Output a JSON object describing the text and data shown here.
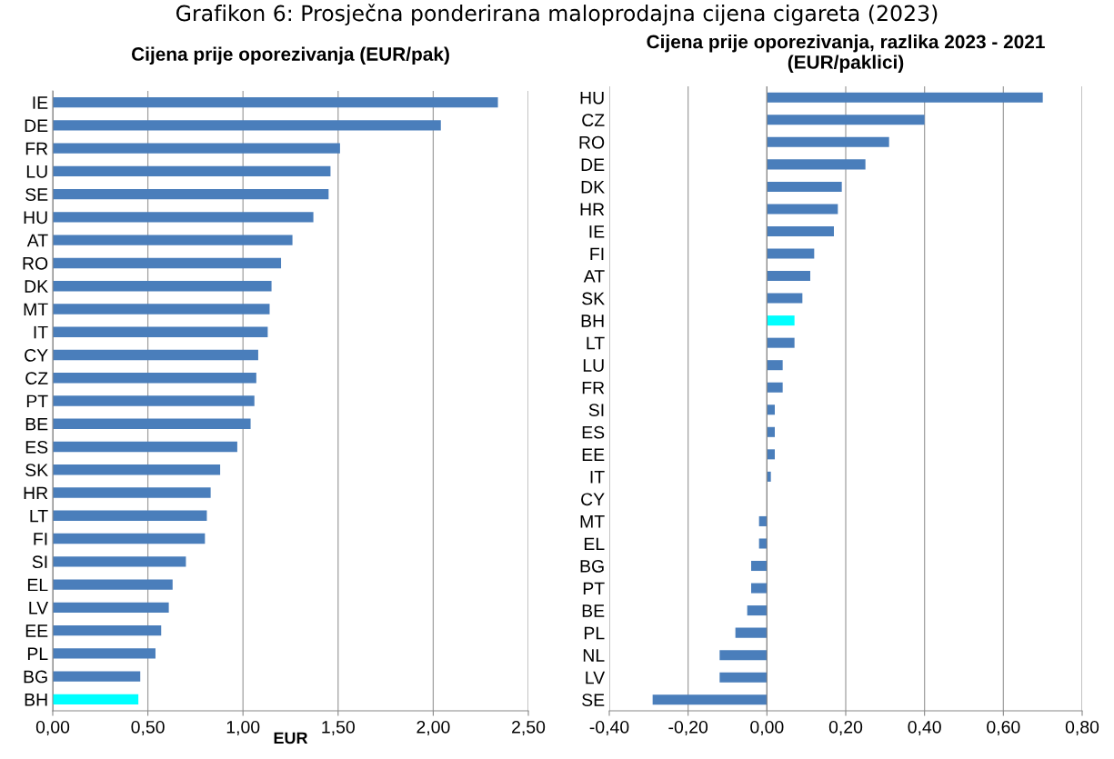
{
  "chart_data": [
    {
      "type": "bar",
      "orientation": "horizontal",
      "title": "Cijena prije oporezivanja (EUR/pak)",
      "xlabel": "EUR",
      "annotations": [
        "Grafikon 6: Prosječna ponderirana maloprodajna cijena cigareta (2023)"
      ],
      "categories": [
        "IE",
        "DE",
        "FR",
        "LU",
        "SE",
        "HU",
        "AT",
        "RO",
        "DK",
        "MT",
        "IT",
        "CY",
        "CZ",
        "PT",
        "BE",
        "ES",
        "SK",
        "HR",
        "LT",
        "FI",
        "SI",
        "EL",
        "LV",
        "EE",
        "PL",
        "BG",
        "BH"
      ],
      "values": [
        2.34,
        2.04,
        1.51,
        1.46,
        1.45,
        1.37,
        1.26,
        1.2,
        1.15,
        1.14,
        1.13,
        1.08,
        1.07,
        1.06,
        1.04,
        0.97,
        0.88,
        0.83,
        0.81,
        0.8,
        0.7,
        0.63,
        0.61,
        0.57,
        0.54,
        0.46,
        0.45
      ],
      "colors": [
        "#4a7ebb",
        "#4a7ebb",
        "#4a7ebb",
        "#4a7ebb",
        "#4a7ebb",
        "#4a7ebb",
        "#4a7ebb",
        "#4a7ebb",
        "#4a7ebb",
        "#4a7ebb",
        "#4a7ebb",
        "#4a7ebb",
        "#4a7ebb",
        "#4a7ebb",
        "#4a7ebb",
        "#4a7ebb",
        "#4a7ebb",
        "#4a7ebb",
        "#4a7ebb",
        "#4a7ebb",
        "#4a7ebb",
        "#4a7ebb",
        "#4a7ebb",
        "#4a7ebb",
        "#4a7ebb",
        "#4a7ebb",
        "#00ffff"
      ],
      "xlim": [
        0,
        2.5
      ],
      "xticks": [
        {
          "value": 0,
          "label": "0,00"
        },
        {
          "value": 0.5,
          "label": "0,50"
        },
        {
          "value": 1,
          "label": "1,00"
        },
        {
          "value": 1.5,
          "label": "1,50"
        },
        {
          "value": 2,
          "label": "2,00"
        },
        {
          "value": 2.5,
          "label": "2,50"
        }
      ],
      "grid": "x",
      "legend": false
    },
    {
      "type": "bar",
      "orientation": "horizontal",
      "title": "Cijena prije oporezivanja, razlika 2023 - 2021\n(EUR/paklici)",
      "categories": [
        "HU",
        "CZ",
        "RO",
        "DE",
        "DK",
        "HR",
        "IE",
        "FI",
        "AT",
        "SK",
        "BH",
        "LT",
        "LU",
        "FR",
        "SI",
        "ES",
        "EE",
        "IT",
        "CY",
        "MT",
        "EL",
        "BG",
        "PT",
        "BE",
        "PL",
        "NL",
        "LV",
        "SE"
      ],
      "values": [
        0.7,
        0.4,
        0.31,
        0.25,
        0.19,
        0.18,
        0.17,
        0.12,
        0.11,
        0.09,
        0.07,
        0.07,
        0.04,
        0.04,
        0.02,
        0.02,
        0.02,
        0.01,
        0.0,
        -0.02,
        -0.02,
        -0.04,
        -0.04,
        -0.05,
        -0.08,
        -0.12,
        -0.12,
        -0.29
      ],
      "colors": [
        "#4a7ebb",
        "#4a7ebb",
        "#4a7ebb",
        "#4a7ebb",
        "#4a7ebb",
        "#4a7ebb",
        "#4a7ebb",
        "#4a7ebb",
        "#4a7ebb",
        "#4a7ebb",
        "#00ffff",
        "#4a7ebb",
        "#4a7ebb",
        "#4a7ebb",
        "#4a7ebb",
        "#4a7ebb",
        "#4a7ebb",
        "#4a7ebb",
        "#4a7ebb",
        "#4a7ebb",
        "#4a7ebb",
        "#4a7ebb",
        "#4a7ebb",
        "#4a7ebb",
        "#4a7ebb",
        "#4a7ebb",
        "#4a7ebb",
        "#4a7ebb"
      ],
      "xlim": [
        -0.4,
        0.8
      ],
      "xticks": [
        {
          "value": -0.4,
          "label": "-0,40"
        },
        {
          "value": -0.2,
          "label": "-0,20"
        },
        {
          "value": 0,
          "label": "0,00"
        },
        {
          "value": 0.2,
          "label": "0,20"
        },
        {
          "value": 0.4,
          "label": "0,40"
        },
        {
          "value": 0.6,
          "label": "0,60"
        },
        {
          "value": 0.8,
          "label": "0,80"
        }
      ],
      "grid": "x",
      "legend": false
    }
  ]
}
